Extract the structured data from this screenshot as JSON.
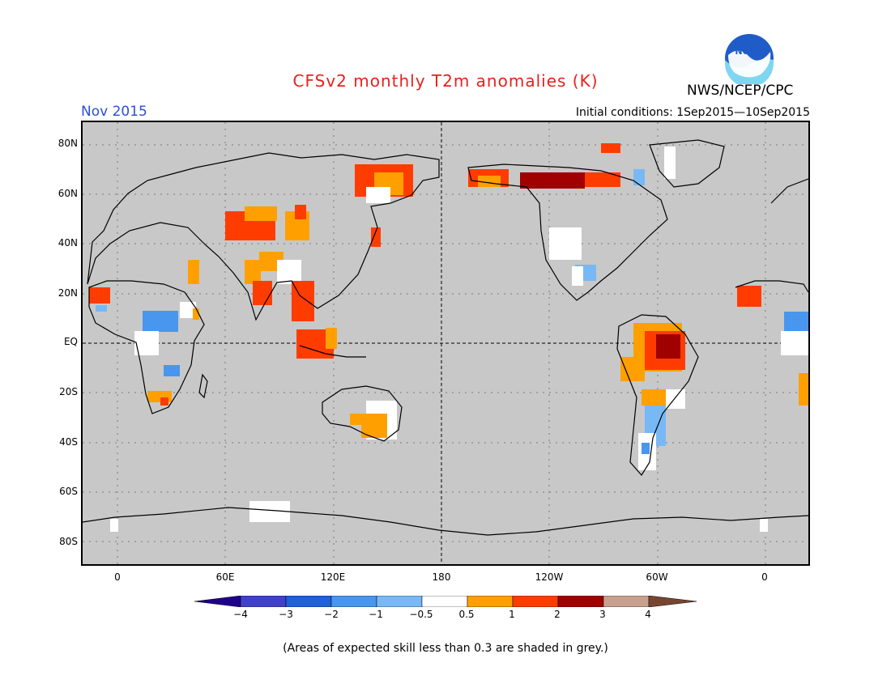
{
  "header": {
    "title": "CFSv2 monthly T2m anomalies (K)",
    "month": "Nov 2015",
    "initial_conditions": "Initial conditions: 1Sep2015—10Sep2015",
    "agency": "NWS/NCEP/CPC",
    "logo_text": "NOAA"
  },
  "map": {
    "lat_labels": [
      "80N",
      "60N",
      "40N",
      "20N",
      "EQ",
      "20S",
      "40S",
      "60S",
      "80S"
    ],
    "lon_labels": [
      "0",
      "60E",
      "120E",
      "180",
      "120W",
      "60W",
      "0"
    ]
  },
  "colorbar": {
    "labels": [
      "−4",
      "−3",
      "−2",
      "−1",
      "−0.5",
      "0.5",
      "1",
      "2",
      "3",
      "4"
    ],
    "colors": [
      "#1e008c",
      "#4040c8",
      "#2060d8",
      "#4896ee",
      "#78b8f4",
      "#ffffff",
      "#ffa000",
      "#ff3c00",
      "#a00000",
      "#c8a090",
      "#784630"
    ]
  },
  "footer": {
    "note": "(Areas of expected skill less than 0.3 are shaded in grey.)"
  }
}
